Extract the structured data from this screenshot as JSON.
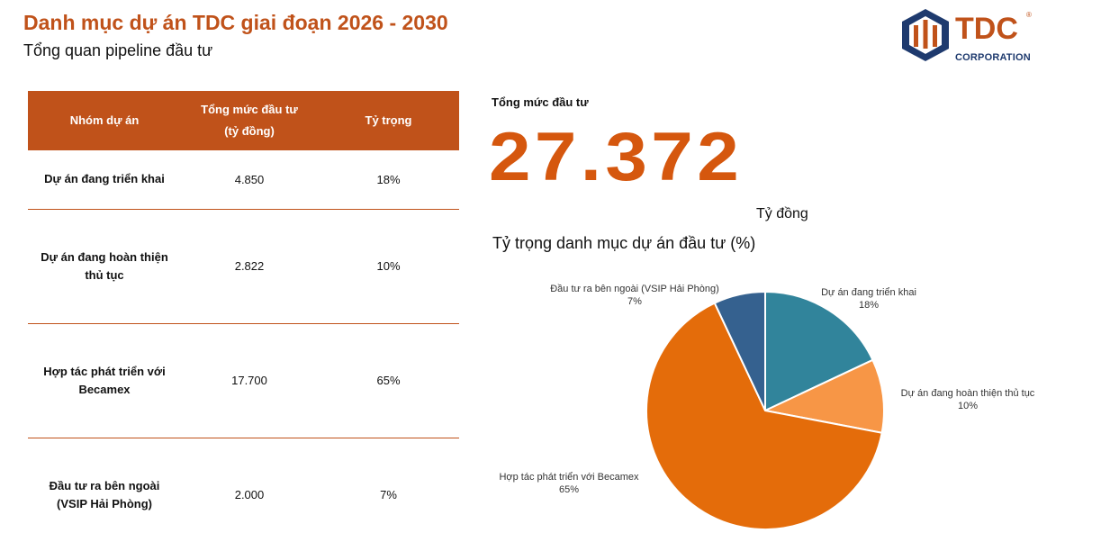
{
  "header": {
    "title": "Danh mục dự án TDC giai đoạn 2026 - 2030",
    "subtitle": "Tổng quan pipeline đầu tư"
  },
  "logo": {
    "word": "TDC",
    "sub": "CORPORATION",
    "reg": "®"
  },
  "table": {
    "headers": {
      "group": "Nhóm dự án",
      "invest_line1": "Tổng mức đầu tư",
      "invest_line2": "(tỷ đồng)",
      "share": "Tỷ trọng"
    },
    "rows": [
      {
        "name_line1": "Dự án đang triển khai",
        "name_line2": "",
        "value": "4.850",
        "share": "18%"
      },
      {
        "name_line1": "Dự án đang hoàn thiện",
        "name_line2": "thủ tục",
        "value": "2.822",
        "share": "10%"
      },
      {
        "name_line1": "Hợp tác phát triển với",
        "name_line2": "Becamex",
        "value": "17.700",
        "share": "65%"
      },
      {
        "name_line1": "Đầu tư ra bên ngoài",
        "name_line2": "(VSIP Hải Phòng)",
        "value": "2.000",
        "share": "7%"
      }
    ]
  },
  "total": {
    "label": "Tổng mức đầu tư",
    "value": "27.372",
    "unit": "Tỷ đồng"
  },
  "chart_data": {
    "type": "pie",
    "title": "Tỷ trọng danh mục dự án đầu tư (%)",
    "slices": [
      {
        "name": "Dự án đang triển khai",
        "value": 18,
        "label": "18%",
        "color": "#31849B"
      },
      {
        "name": "Dự án đang hoàn thiện thủ tục",
        "value": 10,
        "label": "10%",
        "color": "#F79646"
      },
      {
        "name": "Hợp tác phát triển với Becamex",
        "value": 65,
        "label": "65%",
        "color": "#E46C0A"
      },
      {
        "name": "Đầu tư ra bên ngoài (VSIP Hải Phòng)",
        "value": 7,
        "label": "7%",
        "color": "#35618F"
      }
    ],
    "start": "top",
    "direction": "clockwise",
    "legend": "none"
  },
  "colors": {
    "accent": "#C0521A",
    "big_number": "#D5570E",
    "logo_navy": "#1E3A6E"
  }
}
